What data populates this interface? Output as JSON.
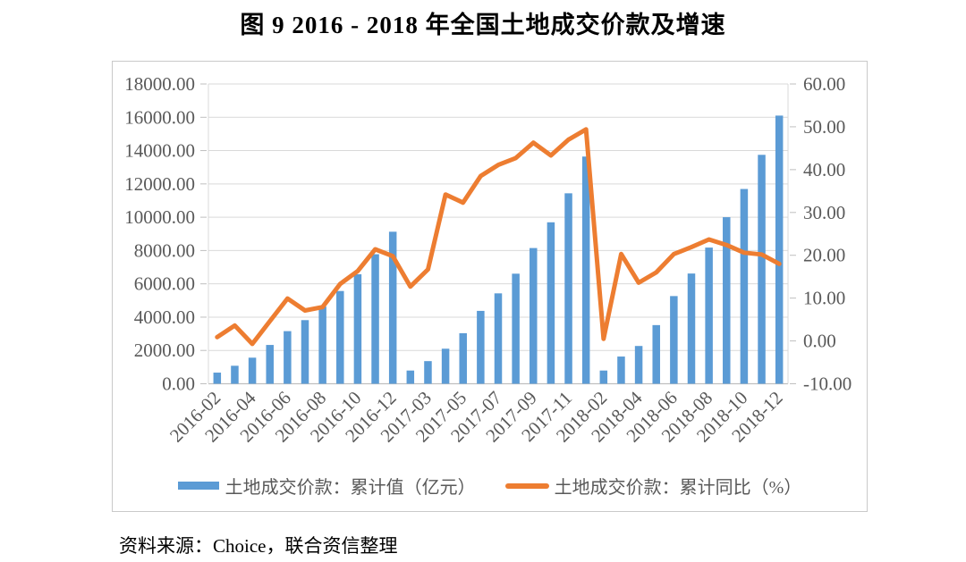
{
  "title": "图 9  2016 - 2018 年全国土地成交价款及增速",
  "source": "资料来源：Choice，联合资信整理",
  "colors": {
    "bar_blue": "#5B9BD5",
    "line_orange": "#ED7D31",
    "gridline": "#D9D9D9",
    "axis_line": "#BFBFBF",
    "axis_text": "#595959",
    "box_border": "#C9C9C9"
  },
  "chart_data": {
    "type": "bar+line combo",
    "title": "图 9  2016 - 2018 年全国土地成交价款及增速",
    "grid": true,
    "legend_position": "bottom",
    "categories": [
      "2016-02",
      "2016-03",
      "2016-04",
      "2016-05",
      "2016-06",
      "2016-07",
      "2016-08",
      "2016-09",
      "2016-10",
      "2016-11",
      "2016-12",
      "2017-02",
      "2017-03",
      "2017-04",
      "2017-05",
      "2017-06",
      "2017-07",
      "2017-08",
      "2017-09",
      "2017-10",
      "2017-11",
      "2017-12",
      "2018-02",
      "2018-03",
      "2018-04",
      "2018-05",
      "2018-06",
      "2018-07",
      "2018-08",
      "2018-09",
      "2018-10",
      "2018-11",
      "2018-12"
    ],
    "x_tick_labels": [
      "2016-02",
      "2016-04",
      "2016-06",
      "2016-08",
      "2016-10",
      "2016-12",
      "2017-03",
      "2017-05",
      "2017-07",
      "2017-09",
      "2017-11",
      "2018-02",
      "2018-04",
      "2018-06",
      "2018-08",
      "2018-10",
      "2018-12"
    ],
    "series": [
      {
        "name": "土地成交价款：累计值（亿元）",
        "type": "bar",
        "axis": "left",
        "color": "#5B9BD5",
        "values": [
          669,
          1080,
          1566,
          2330,
          3159,
          3821,
          4632,
          5569,
          6577,
          7777,
          9129,
          794,
          1359,
          2104,
          3036,
          4376,
          5428,
          6609,
          8149,
          9695,
          11436,
          13643,
          794,
          1634,
          2269,
          3522,
          5265,
          6619,
          8177,
          10002,
          11695,
          13746,
          16102
        ]
      },
      {
        "name": "土地成交价款：累计同比（%）",
        "type": "line",
        "axis": "right",
        "color": "#ED7D31",
        "values": [
          0.9,
          3.6,
          -0.7,
          4.6,
          9.9,
          7.1,
          7.9,
          13.3,
          16.3,
          21.4,
          19.8,
          12.7,
          16.7,
          34.2,
          32.3,
          38.5,
          41.1,
          42.7,
          46.3,
          43.3,
          47.0,
          49.4,
          0.5,
          20.3,
          13.6,
          16.0,
          20.3,
          21.9,
          23.7,
          22.4,
          20.6,
          20.2,
          18.0
        ]
      }
    ],
    "left_axis": {
      "min": 0,
      "max": 18000,
      "step": 2000,
      "tick_format": "0.00"
    },
    "right_axis": {
      "min": -10,
      "max": 60,
      "step": 10,
      "tick_format": "0.00"
    },
    "legend": [
      {
        "label": "土地成交价款：累计值（亿元）"
      },
      {
        "label": "土地成交价款：累计同比（%）"
      }
    ]
  }
}
